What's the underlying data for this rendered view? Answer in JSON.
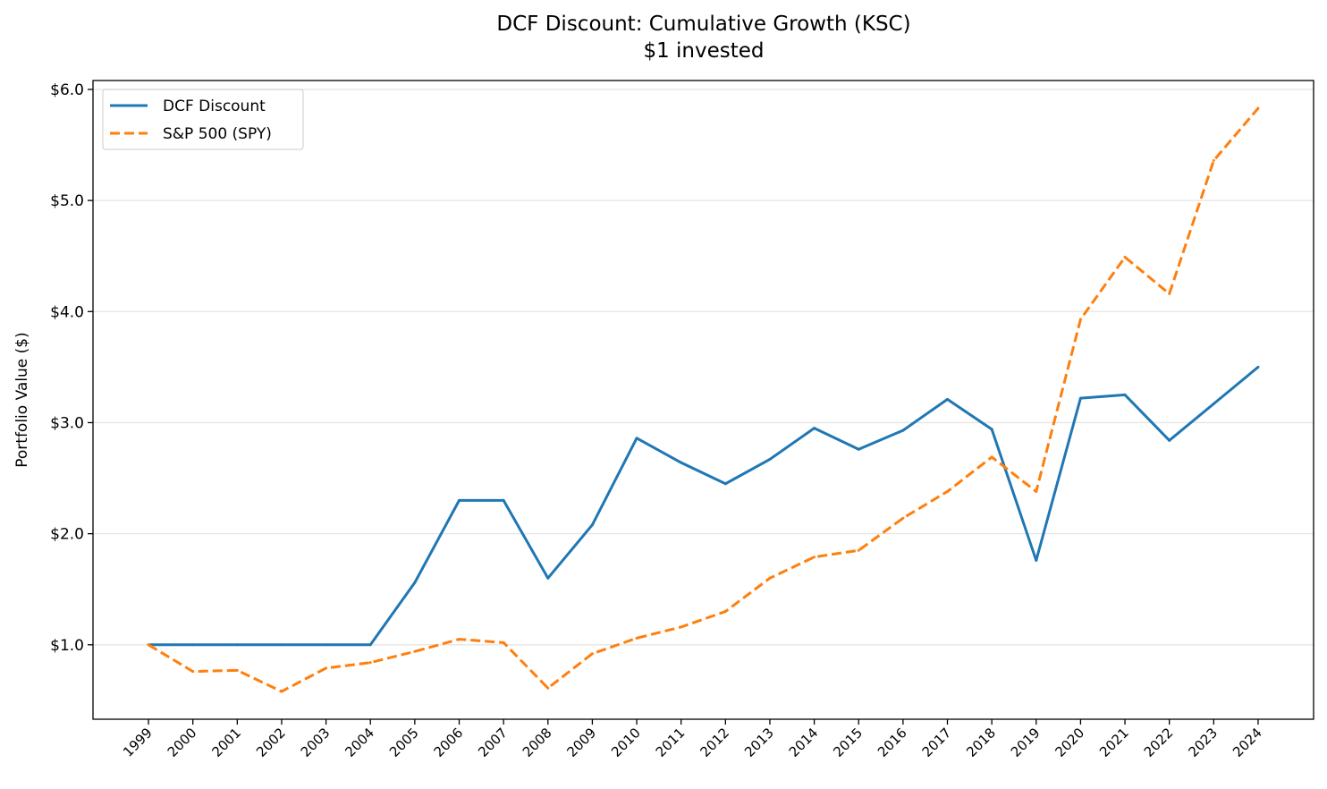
{
  "chart_data": {
    "type": "line",
    "title": "DCF Discount: Cumulative Growth (KSC)",
    "subtitle": "$1 invested",
    "xlabel": "",
    "ylabel": "Portfolio Value ($)",
    "x": [
      1999,
      2000,
      2001,
      2002,
      2003,
      2004,
      2005,
      2006,
      2007,
      2008,
      2009,
      2010,
      2011,
      2012,
      2013,
      2014,
      2015,
      2016,
      2017,
      2018,
      2019,
      2020,
      2021,
      2022,
      2023,
      2024
    ],
    "x_tick_labels": [
      "1999",
      "2000",
      "2001",
      "2002",
      "2003",
      "2004",
      "2005",
      "2006",
      "2007",
      "2008",
      "2009",
      "2010",
      "2011",
      "2012",
      "2013",
      "2014",
      "2015",
      "2016",
      "2017",
      "2018",
      "2019",
      "2020",
      "2021",
      "2022",
      "2023",
      "2024"
    ],
    "y_ticks": [
      1,
      2,
      3,
      4,
      5,
      6
    ],
    "y_tick_labels": [
      "$1.0",
      "$2.0",
      "$3.0",
      "$4.0",
      "$5.0",
      "$6.0"
    ],
    "xlim": [
      1997.75,
      2025.25
    ],
    "ylim": [
      0.33,
      6.08
    ],
    "grid": "horizontal",
    "legend_placement": "top-left",
    "series": [
      {
        "name": "DCF Discount",
        "color": "#1f77b4",
        "style": "solid",
        "values": [
          1.0,
          1.0,
          1.0,
          1.0,
          1.0,
          1.0,
          1.56,
          2.3,
          2.3,
          1.6,
          2.08,
          2.86,
          2.64,
          2.45,
          2.67,
          2.95,
          2.76,
          2.93,
          3.21,
          2.94,
          1.76,
          3.22,
          3.25,
          2.84,
          3.17,
          3.5
        ]
      },
      {
        "name": "S&P 500 (SPY)",
        "color": "#ff7f0e",
        "style": "dashed",
        "values": [
          1.0,
          0.76,
          0.77,
          0.58,
          0.79,
          0.84,
          0.94,
          1.05,
          1.02,
          0.61,
          0.92,
          1.06,
          1.16,
          1.3,
          1.6,
          1.79,
          1.85,
          2.14,
          2.38,
          2.69,
          2.38,
          3.93,
          4.49,
          4.16,
          5.36,
          5.83
        ]
      }
    ]
  }
}
